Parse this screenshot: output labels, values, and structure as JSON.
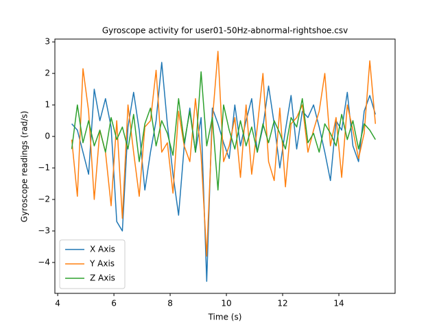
{
  "chart_data": {
    "type": "line",
    "title": "Gyroscope activity for user01-50Hz-abnormal-rightshoe.csv",
    "x_label": "Time (s)",
    "y_label": "Gyroscope readings (rad/s)",
    "x": [
      4.5,
      4.7,
      4.9,
      5.1,
      5.3,
      5.5,
      5.7,
      5.9,
      6.1,
      6.3,
      6.5,
      6.7,
      6.9,
      7.1,
      7.3,
      7.5,
      7.7,
      7.9,
      8.1,
      8.3,
      8.5,
      8.7,
      8.9,
      9.1,
      9.3,
      9.5,
      9.7,
      9.9,
      10.1,
      10.3,
      10.5,
      10.7,
      10.9,
      11.1,
      11.3,
      11.5,
      11.7,
      11.9,
      12.1,
      12.3,
      12.5,
      12.7,
      12.9,
      13.1,
      13.3,
      13.5,
      13.7,
      13.9,
      14.1,
      14.3,
      14.5,
      14.7,
      14.9,
      15.1,
      15.3
    ],
    "series": [
      {
        "name": "X Axis",
        "color": "#1f77b4",
        "values": [
          0.4,
          0.2,
          -0.5,
          -1.2,
          1.5,
          0.5,
          1.2,
          0.3,
          -2.7,
          -3.0,
          0.3,
          1.4,
          0.2,
          -1.7,
          -0.5,
          0.5,
          2.35,
          0.4,
          -1.2,
          -2.5,
          -0.3,
          0.9,
          -0.5,
          0.6,
          -4.6,
          0.9,
          0.4,
          -0.2,
          -0.7,
          1.0,
          -0.3,
          0.5,
          1.2,
          -0.5,
          0.3,
          1.6,
          0.4,
          -1.0,
          0.2,
          1.3,
          -0.4,
          0.8,
          0.6,
          1.0,
          0.3,
          -0.5,
          -1.4,
          0.5,
          0.2,
          1.4,
          -0.3,
          -0.8,
          0.8,
          1.3,
          0.7
        ]
      },
      {
        "name": "Y Axis",
        "color": "#ff7f0e",
        "values": [
          -0.1,
          -1.9,
          2.15,
          0.8,
          -2.0,
          0.2,
          -0.5,
          -2.2,
          0.5,
          -2.6,
          1.0,
          -0.5,
          -1.9,
          0.3,
          0.5,
          2.1,
          -0.5,
          -0.2,
          -1.8,
          0.8,
          -0.3,
          -0.8,
          1.2,
          -0.6,
          -3.8,
          0.5,
          2.7,
          -0.8,
          -0.3,
          0.6,
          -1.3,
          1.0,
          -1.2,
          0.3,
          2.0,
          -0.8,
          -1.4,
          0.9,
          -1.6,
          0.4,
          0.6,
          1.0,
          -0.5,
          0.2,
          0.8,
          2.0,
          -0.3,
          0.6,
          -1.3,
          1.0,
          0.2,
          -0.7,
          0.1,
          2.4,
          0.4
        ]
      },
      {
        "name": "Z Axis",
        "color": "#2ca02c",
        "values": [
          -0.4,
          1.0,
          -0.2,
          0.5,
          -0.3,
          0.2,
          -0.5,
          0.6,
          -0.1,
          0.3,
          -0.4,
          0.7,
          -0.8,
          0.4,
          0.9,
          -0.3,
          0.5,
          0.1,
          -0.6,
          1.2,
          -0.2,
          0.8,
          -0.5,
          2.05,
          -0.3,
          0.6,
          -1.7,
          1.0,
          0.2,
          -0.4,
          0.5,
          -0.3,
          0.3,
          -0.5,
          0.4,
          -0.2,
          0.5,
          0.1,
          -0.4,
          0.6,
          0.3,
          1.2,
          -0.2,
          0.1,
          -0.5,
          0.4,
          0.1,
          -0.3,
          0.7,
          -0.1,
          0.5,
          -0.4,
          0.4,
          0.2,
          -0.1
        ]
      }
    ],
    "xlim": [
      3.9,
      16.0
    ],
    "xticks": [
      4,
      6,
      8,
      10,
      12,
      14
    ],
    "ylim": [
      -4.98,
      3.09
    ],
    "yticks": [
      {
        "value": -4,
        "label": "−4"
      },
      {
        "value": -3,
        "label": "−3"
      },
      {
        "value": -2,
        "label": "−2"
      },
      {
        "value": -1,
        "label": "−1"
      },
      0,
      1,
      2,
      3
    ],
    "legend": "lower left",
    "grid": false
  }
}
